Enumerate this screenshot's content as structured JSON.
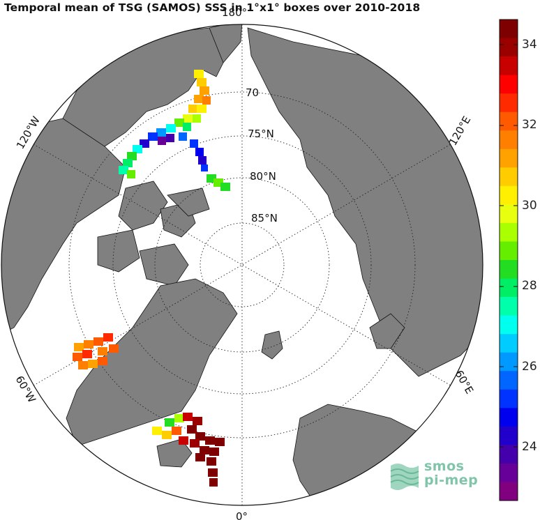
{
  "title": "Temporal mean of TSG (SAMOS) SSS in 1°x1° boxes over 2010-2018",
  "map": {
    "top_label": "180°",
    "bottom_label": "0°",
    "lon_labels": {
      "nw": "120°W",
      "ne": "120°E",
      "sw": "60°W",
      "se": "60°E"
    },
    "lat_labels": [
      "70",
      "75°N",
      "80°N",
      "85°N"
    ]
  },
  "colorbar": {
    "ticks": [
      "34",
      "32",
      "30",
      "28",
      "26",
      "24"
    ],
    "colors": [
      "#7f0000",
      "#9a0000",
      "#c80000",
      "#ff0000",
      "#ff2a00",
      "#ff5a00",
      "#ff7f00",
      "#ffa200",
      "#ffcc00",
      "#ffef00",
      "#e8ff10",
      "#aaff00",
      "#66ee00",
      "#22dd22",
      "#00ee66",
      "#00ffaa",
      "#00ffee",
      "#00ccff",
      "#0099ff",
      "#0066ff",
      "#0033ff",
      "#0000ee",
      "#2200cc",
      "#4400aa",
      "#660099",
      "#800080"
    ]
  },
  "logo": {
    "line1": "smos",
    "line2": "pi-mep"
  }
}
